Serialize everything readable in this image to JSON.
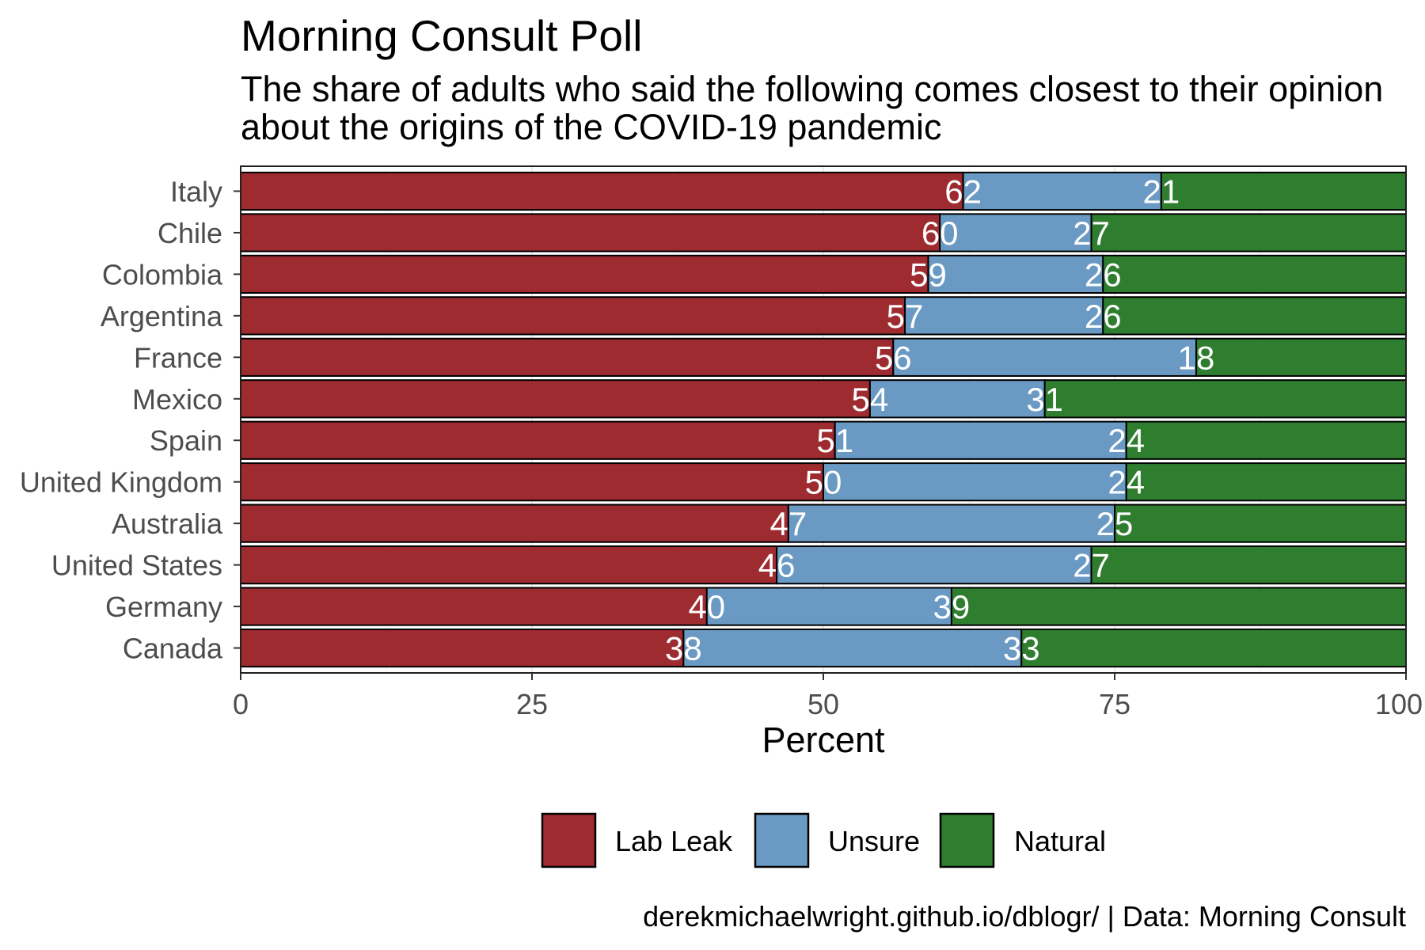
{
  "chart_data": {
    "type": "bar",
    "orientation": "horizontal",
    "stacked": true,
    "title": "Morning Consult Poll",
    "subtitle": "The share of adults who said the following comes closest to their opinion\nabout the origins of the COVID-19 pandemic",
    "xlabel": "Percent",
    "xlim": [
      0,
      100
    ],
    "x_ticks": [
      0,
      25,
      50,
      75,
      100
    ],
    "categories": [
      "Italy",
      "Chile",
      "Colombia",
      "Argentina",
      "France",
      "Mexico",
      "Spain",
      "United Kingdom",
      "Australia",
      "United States",
      "Germany",
      "Canada"
    ],
    "series": [
      {
        "name": "Lab Leak",
        "color": "#9e2b2f",
        "values": [
          62,
          60,
          59,
          57,
          56,
          54,
          51,
          50,
          47,
          46,
          40,
          38
        ]
      },
      {
        "name": "Unsure",
        "color": "#6a9ac4",
        "values": [
          17,
          13,
          15,
          17,
          26,
          15,
          25,
          26,
          28,
          27,
          21,
          29
        ]
      },
      {
        "name": "Natural",
        "color": "#2f7e30",
        "values": [
          21,
          27,
          26,
          26,
          18,
          31,
          24,
          24,
          25,
          27,
          39,
          33
        ]
      }
    ],
    "grid": true,
    "legend": "bottom",
    "caption": "derekmichaelwright.github.io/dblogr/ | Data: Morning Consult"
  }
}
